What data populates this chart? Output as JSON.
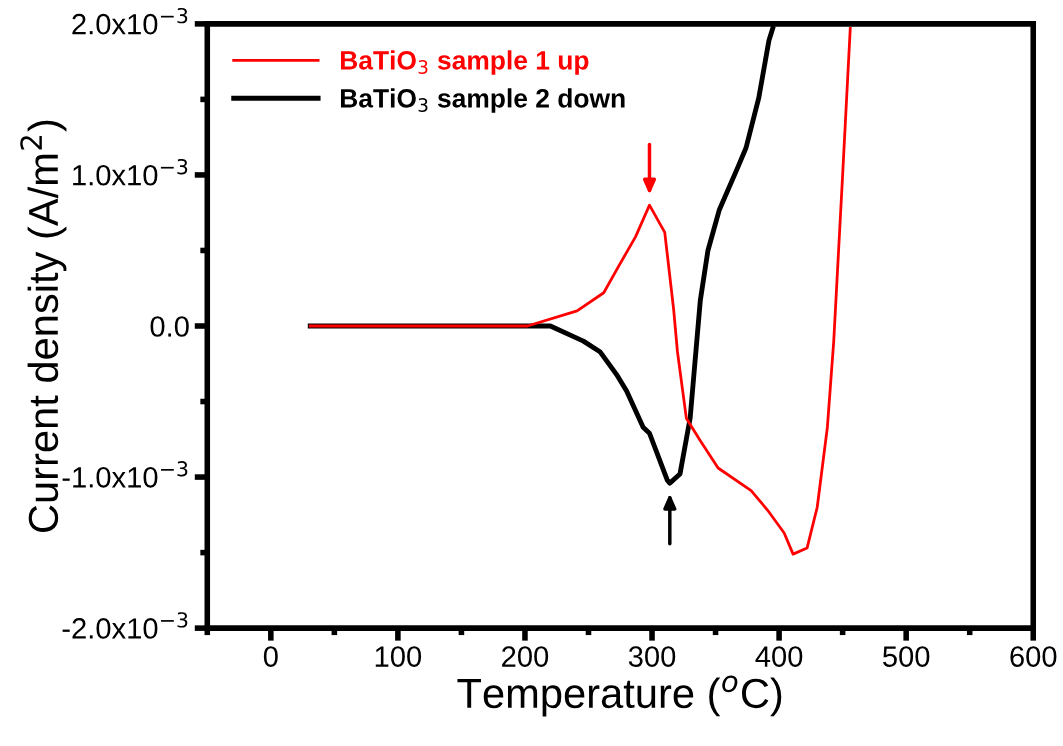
{
  "chart_data": {
    "type": "line",
    "xlabel": "Temperature ($^{o}$C)",
    "ylabel": "Current density (A/m$^{2}$)",
    "xlim": [
      -50,
      600
    ],
    "xticks": [
      0,
      100,
      200,
      300,
      400,
      500,
      600
    ],
    "ylim": [
      -0.002,
      0.002
    ],
    "yticks": [
      {
        "value": -0.002,
        "label": "-2.0x10$^{−3}$"
      },
      {
        "value": -0.001,
        "label": "-1.0x10$^{−3}$"
      },
      {
        "value": 0,
        "label": "0.0"
      },
      {
        "value": 0.001,
        "label": "1.0x10$^{−3}$"
      },
      {
        "value": 0.002,
        "label": "2.0x10$^{−3}$"
      }
    ],
    "legend": "top left",
    "grid": false,
    "marker": "none",
    "line_style": "solid",
    "series": [
      {
        "name": "BaTiO$_{3}$ sample 1 up",
        "color": "#ff0000",
        "x": [
          31,
          100,
          150,
          202,
          241,
          262,
          274,
          287,
          298,
          310,
          317,
          320,
          327,
          338,
          352,
          378,
          391,
          404,
          411,
          422,
          430,
          438,
          443,
          450,
          456
        ],
        "values": [
          0,
          0,
          0,
          0,
          0.0001,
          0.00022,
          0.0004,
          0.00059,
          0.0008,
          0.00062,
          0.00011,
          -0.00017,
          -0.00061,
          -0.00076,
          -0.00094,
          -0.00109,
          -0.00122,
          -0.00137,
          -0.00151,
          -0.00147,
          -0.0012,
          -0.00067,
          -0.0001,
          0.001,
          0.00197
        ]
      },
      {
        "name": "BaTiO$_{3}$ sample 2 down",
        "color": "#000000",
        "x": [
          31,
          100,
          150,
          200,
          220,
          246,
          259,
          272,
          280,
          293,
          298,
          312,
          314,
          322,
          330,
          338,
          344,
          353,
          368,
          374,
          384,
          392,
          395
        ],
        "values": [
          0,
          0,
          0,
          0,
          0,
          -0.0001,
          -0.00017,
          -0.00032,
          -0.00043,
          -0.00067,
          -0.00071,
          -0.00102,
          -0.00104,
          -0.00098,
          -0.00061,
          0.00017,
          0.0005,
          0.00077,
          0.00106,
          0.00118,
          0.00151,
          0.00189,
          0.00197
        ]
      }
    ]
  }
}
